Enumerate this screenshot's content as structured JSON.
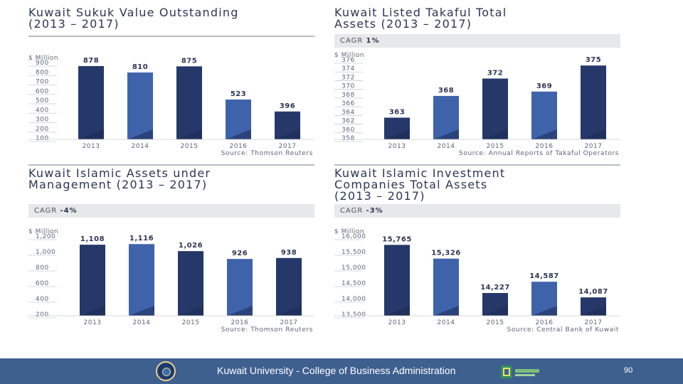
{
  "chart_data": [
    {
      "type": "bar",
      "title": "Kuwait Sukuk Value Outstanding (2013 – 2017)",
      "title_lines": [
        "Kuwait Sukuk Value Outstanding",
        "(2013 – 2017)"
      ],
      "ylabel": "$ Million",
      "categories": [
        "2013",
        "2014",
        "2015",
        "2016",
        "2017"
      ],
      "values": [
        878,
        810,
        875,
        523,
        396
      ],
      "value_labels": [
        "878",
        "810",
        "875",
        "523",
        "396"
      ],
      "ylim": [
        100,
        900
      ],
      "yticks": [
        "100",
        "200",
        "300",
        "400",
        "500",
        "600",
        "700",
        "800",
        "900"
      ],
      "ytick_values": [
        100,
        200,
        300,
        400,
        500,
        600,
        700,
        800,
        900
      ],
      "source": "Source: Thomson Reuters"
    },
    {
      "type": "bar",
      "title": "Kuwait Listed Takaful Total Assets (2013 – 2017)",
      "title_lines": [
        "Kuwait Listed Takaful Total",
        "Assets (2013 – 2017)"
      ],
      "cagr_label": "CAGR",
      "cagr_value": "1%",
      "ylabel": "$ Million",
      "categories": [
        "2013",
        "2014",
        "2015",
        "2016",
        "2017"
      ],
      "values": [
        363,
        368,
        372,
        369,
        375
      ],
      "value_labels": [
        "363",
        "368",
        "372",
        "369",
        "375"
      ],
      "ylim": [
        358,
        376
      ],
      "yticks": [
        "358",
        "360",
        "362",
        "364",
        "366",
        "368",
        "370",
        "372",
        "374",
        "376"
      ],
      "ytick_values": [
        358,
        360,
        362,
        364,
        366,
        368,
        370,
        372,
        374,
        376
      ],
      "source": "Source: Annual Reports of Takaful Operators"
    },
    {
      "type": "bar",
      "title": "Kuwait Islamic Assets under Management (2013 – 2017)",
      "title_lines": [
        "Kuwait Islamic Assets under",
        "Management (2013 – 2017)"
      ],
      "cagr_label": "CAGR",
      "cagr_value": "-4%",
      "ylabel": "$ Million",
      "categories": [
        "2013",
        "2014",
        "2015",
        "2016",
        "2017"
      ],
      "values": [
        1108,
        1116,
        1026,
        926,
        938
      ],
      "value_labels": [
        "1,108",
        "1,116",
        "1,026",
        "926",
        "938"
      ],
      "ylim": [
        200,
        1200
      ],
      "yticks": [
        "200",
        "400",
        "600",
        "800",
        "1,000",
        "1,200"
      ],
      "ytick_values": [
        200,
        400,
        600,
        800,
        1000,
        1200
      ],
      "source": "Source: Thomson Reuters"
    },
    {
      "type": "bar",
      "title": "Kuwait Islamic Investment Companies Total Assets (2013 – 2017)",
      "title_lines": [
        "Kuwait Islamic Investment",
        "Companies Total Assets",
        "(2013 – 2017)"
      ],
      "cagr_label": "CAGR",
      "cagr_value": "-3%",
      "ylabel": "$ Million",
      "categories": [
        "2013",
        "2014",
        "2015",
        "2016",
        "2017"
      ],
      "values": [
        15765,
        15326,
        14227,
        14587,
        14087
      ],
      "value_labels": [
        "15,765",
        "15,326",
        "14,227",
        "14,587",
        "14,087"
      ],
      "ylim": [
        13500,
        16000
      ],
      "yticks": [
        "13,500",
        "14,000",
        "14,500",
        "15,000",
        "15,500",
        "16,000"
      ],
      "ytick_values": [
        13500,
        14000,
        14500,
        15000,
        15500,
        16000
      ],
      "source": "Source: Central Bank of Kuwait"
    }
  ],
  "colors": {
    "dark_bar": "#263869",
    "light_bar": "#3e63ab",
    "shade": "#1c2a52",
    "footer_bg": "#3e608f"
  },
  "footer": {
    "text": "Kuwait University - College of Business Administration",
    "page": "90",
    "left_logo": "university-seal-icon",
    "right_logo": "aacsb-logo-icon"
  }
}
